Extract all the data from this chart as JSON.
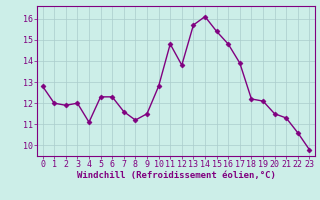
{
  "x": [
    0,
    1,
    2,
    3,
    4,
    5,
    6,
    7,
    8,
    9,
    10,
    11,
    12,
    13,
    14,
    15,
    16,
    17,
    18,
    19,
    20,
    21,
    22,
    23
  ],
  "y": [
    12.8,
    12.0,
    11.9,
    12.0,
    11.1,
    12.3,
    12.3,
    11.6,
    11.2,
    11.5,
    12.8,
    14.8,
    13.8,
    15.7,
    16.1,
    15.4,
    14.8,
    13.9,
    12.2,
    12.1,
    11.5,
    11.3,
    10.6,
    9.8
  ],
  "line_color": "#800080",
  "marker": "D",
  "markersize": 2.5,
  "linewidth": 1.0,
  "bg_color": "#cceee8",
  "grid_color": "#aacccc",
  "xlabel": "Windchill (Refroidissement éolien,°C)",
  "xlabel_color": "#800080",
  "tick_color": "#800080",
  "spine_color": "#800080",
  "ylim": [
    9.5,
    16.6
  ],
  "yticks": [
    10,
    11,
    12,
    13,
    14,
    15,
    16
  ],
  "xticks": [
    0,
    1,
    2,
    3,
    4,
    5,
    6,
    7,
    8,
    9,
    10,
    11,
    12,
    13,
    14,
    15,
    16,
    17,
    18,
    19,
    20,
    21,
    22,
    23
  ],
  "tick_fontsize": 6.0,
  "xlabel_fontsize": 6.5
}
